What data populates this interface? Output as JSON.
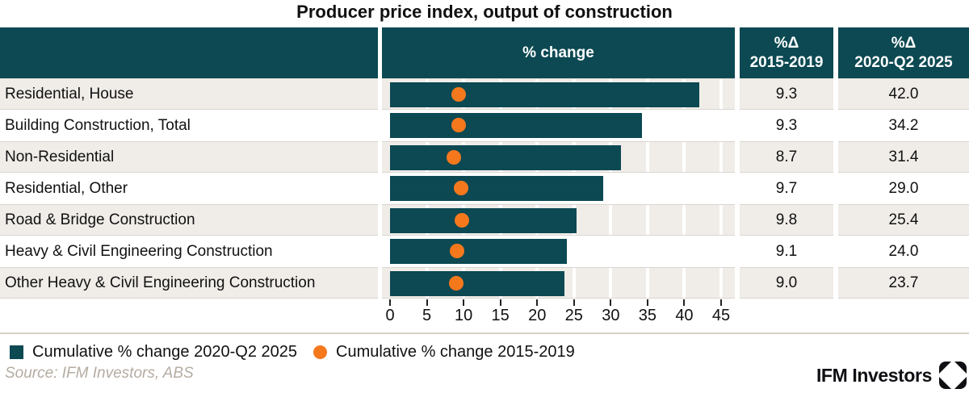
{
  "title": "Producer price index, output of construction",
  "header": {
    "labels_col": "",
    "chart_col": "% change",
    "col_2015_line1": "%Δ",
    "col_2015_line2": "2015-2019",
    "col_2025_line1": "%Δ",
    "col_2025_line2": "2020-Q2 2025"
  },
  "chart_data": {
    "type": "bar",
    "orientation": "horizontal",
    "title": "Producer price index, output of construction",
    "xlabel": "% change",
    "ylabel": "",
    "xlim": [
      0,
      45
    ],
    "xticks": [
      0,
      5,
      10,
      15,
      20,
      25,
      30,
      35,
      40,
      45
    ],
    "grid": "vertical",
    "legend_position": "bottom",
    "categories": [
      "Residential, House",
      "Building Construction, Total",
      "Non-Residential",
      "Residential, Other",
      "Road & Bridge Construction",
      "Heavy & Civil Engineering Construction",
      "Other Heavy & Civil Engineering Construction"
    ],
    "series": [
      {
        "name": "Cumulative % change 2020-Q2 2025",
        "mark": "bar",
        "color": "#0c4952",
        "values": [
          42.0,
          34.2,
          31.4,
          29.0,
          25.4,
          24.0,
          23.7
        ]
      },
      {
        "name": "Cumulative % change 2015-2019",
        "mark": "dot",
        "color": "#f6781d",
        "values": [
          9.3,
          9.3,
          8.7,
          9.7,
          9.8,
          9.1,
          9.0
        ]
      }
    ]
  },
  "table": {
    "rows": [
      {
        "label": "Residential, House",
        "pct_2015_2019": "9.3",
        "pct_2020_2025": "42.0"
      },
      {
        "label": "Building Construction, Total",
        "pct_2015_2019": "9.3",
        "pct_2020_2025": "34.2"
      },
      {
        "label": "Non-Residential",
        "pct_2015_2019": "8.7",
        "pct_2020_2025": "31.4"
      },
      {
        "label": "Residential, Other",
        "pct_2015_2019": "9.7",
        "pct_2020_2025": "29.0"
      },
      {
        "label": "Road & Bridge Construction",
        "pct_2015_2019": "9.8",
        "pct_2020_2025": "25.4"
      },
      {
        "label": "Heavy & Civil Engineering Construction",
        "pct_2015_2019": "9.1",
        "pct_2020_2025": "24.0"
      },
      {
        "label": "Other Heavy & Civil Engineering Construction",
        "pct_2015_2019": "9.0",
        "pct_2020_2025": "23.7"
      }
    ]
  },
  "legend": {
    "items": [
      {
        "label": "Cumulative % change 2020-Q2 2025",
        "shape": "square",
        "color": "#0c4952"
      },
      {
        "label": "Cumulative % change 2015-2019",
        "shape": "circle",
        "color": "#f6781d"
      }
    ]
  },
  "source": "Source: IFM Investors, ABS",
  "branding": {
    "wordmark": "IFM Investors",
    "logo": "ifm-diamond-mark"
  },
  "colors": {
    "teal": "#0c4952",
    "orange": "#f6781d",
    "row_light": "#f0ede9",
    "hairline": "#d9d5d0",
    "divider": "#d7cfc6",
    "muted": "#b5aca2"
  }
}
